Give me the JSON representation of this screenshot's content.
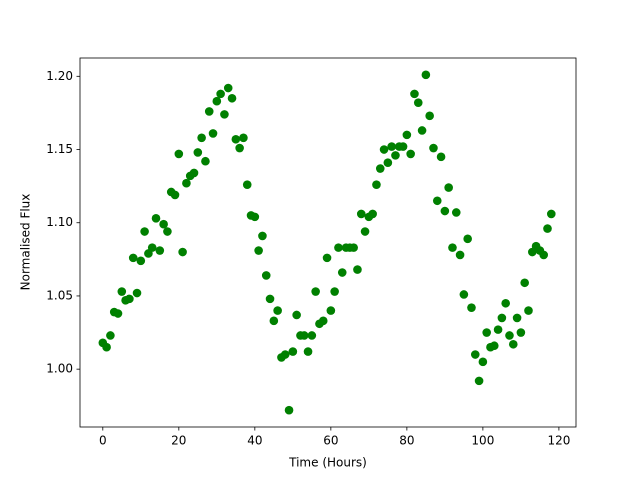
{
  "chart_data": {
    "type": "scatter",
    "xlabel": "Time (Hours)",
    "ylabel": "Normalised Flux",
    "color": "#008000",
    "x": [
      0,
      1,
      2,
      3,
      4,
      5,
      6,
      7,
      8,
      9,
      10,
      11,
      12,
      13,
      14,
      15,
      16,
      17,
      18,
      19,
      20,
      21,
      22,
      23,
      24,
      25,
      26,
      27,
      28,
      29,
      30,
      31,
      32,
      33,
      34,
      35,
      36,
      37,
      38,
      39,
      40,
      41,
      42,
      43,
      44,
      45,
      46,
      47,
      48,
      49,
      50,
      51,
      52,
      53,
      54,
      55,
      56,
      57,
      58,
      59,
      60,
      61,
      62,
      63,
      64,
      65,
      66,
      67,
      68,
      69,
      70,
      71,
      72,
      73,
      74,
      75,
      76,
      77,
      78,
      79,
      80,
      81,
      82,
      83,
      84,
      85,
      86,
      87,
      88,
      89,
      90,
      91,
      92,
      93,
      94,
      95,
      96,
      97,
      98,
      99,
      100,
      101,
      102,
      103,
      104,
      105,
      106,
      107,
      108,
      109,
      110,
      111,
      112,
      113,
      114,
      115,
      116,
      117,
      118
    ],
    "values": [
      1.018,
      1.015,
      1.023,
      1.039,
      1.038,
      1.053,
      1.047,
      1.048,
      1.076,
      1.052,
      1.074,
      1.094,
      1.079,
      1.083,
      1.103,
      1.081,
      1.099,
      1.094,
      1.121,
      1.119,
      1.147,
      1.08,
      1.127,
      1.132,
      1.134,
      1.148,
      1.158,
      1.142,
      1.176,
      1.161,
      1.183,
      1.188,
      1.174,
      1.192,
      1.185,
      1.157,
      1.151,
      1.158,
      1.126,
      1.105,
      1.104,
      1.081,
      1.091,
      1.064,
      1.048,
      1.033,
      1.04,
      1.008,
      1.01,
      0.972,
      1.012,
      1.037,
      1.023,
      1.023,
      1.012,
      1.023,
      1.053,
      1.031,
      1.033,
      1.076,
      1.04,
      1.053,
      1.083,
      1.066,
      1.083,
      1.083,
      1.083,
      1.068,
      1.106,
      1.094,
      1.104,
      1.106,
      1.126,
      1.137,
      1.15,
      1.141,
      1.152,
      1.146,
      1.152,
      1.152,
      1.16,
      1.147,
      1.188,
      1.182,
      1.163,
      1.201,
      1.173,
      1.151,
      1.115,
      1.145,
      1.108,
      1.124,
      1.083,
      1.107,
      1.078,
      1.051,
      1.089,
      1.042,
      1.01,
      0.992,
      1.005,
      1.025,
      1.015,
      1.016,
      1.027,
      1.035,
      1.045,
      1.023,
      1.017,
      1.035,
      1.025,
      1.059,
      1.04,
      1.08,
      1.084,
      1.081,
      1.078,
      1.096,
      1.106
    ],
    "xlim": [
      -6,
      124.5
    ],
    "ylim": [
      0.9605,
      1.2125
    ],
    "xticks": [
      0,
      20,
      40,
      60,
      80,
      100,
      120
    ],
    "yticks": [
      {
        "value": 1.0,
        "label": "1.00"
      },
      {
        "value": 1.05,
        "label": "1.05"
      },
      {
        "value": 1.1,
        "label": "1.10"
      },
      {
        "value": 1.15,
        "label": "1.15"
      },
      {
        "value": 1.2,
        "label": "1.20"
      }
    ]
  }
}
